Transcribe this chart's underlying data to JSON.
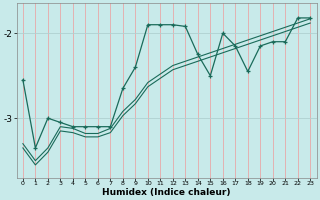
{
  "xlabel": "Humidex (Indice chaleur)",
  "bg_color": "#c8eaea",
  "line_color": "#1a6b5a",
  "grid_color": "#b0d8d8",
  "ytick_labels": [
    "-3",
    "-2"
  ],
  "yticks": [
    -3.0,
    -2.0
  ],
  "ylim": [
    -3.7,
    -1.65
  ],
  "xlim": [
    -0.5,
    23.5
  ],
  "xticks": [
    0,
    1,
    2,
    3,
    4,
    5,
    6,
    7,
    8,
    9,
    10,
    11,
    12,
    13,
    14,
    15,
    16,
    17,
    18,
    19,
    20,
    21,
    22,
    23
  ],
  "series1_x": [
    0,
    1,
    2,
    3,
    4,
    5,
    6,
    7,
    8,
    9,
    10,
    11,
    12,
    13,
    14,
    15,
    16,
    17,
    18,
    19,
    20,
    21,
    22,
    23
  ],
  "series1_y": [
    -2.55,
    -3.35,
    -3.0,
    -3.05,
    -3.1,
    -3.1,
    -3.1,
    -3.1,
    -2.65,
    -2.4,
    -1.9,
    -1.9,
    -1.9,
    -1.92,
    -2.25,
    -2.5,
    -2.0,
    -2.15,
    -2.45,
    -2.15,
    -2.1,
    -2.1,
    -1.82,
    -1.82
  ],
  "series2_x": [
    0,
    1,
    2,
    3,
    4,
    5,
    6,
    7,
    8,
    9,
    10,
    11,
    12,
    13,
    14,
    15,
    16,
    17,
    18,
    19,
    20,
    21,
    22,
    23
  ],
  "series2_y": [
    -3.3,
    -3.5,
    -3.35,
    -3.1,
    -3.12,
    -3.18,
    -3.18,
    -3.12,
    -2.92,
    -2.78,
    -2.58,
    -2.48,
    -2.38,
    -2.33,
    -2.28,
    -2.23,
    -2.18,
    -2.13,
    -2.08,
    -2.03,
    -1.98,
    -1.93,
    -1.88,
    -1.83
  ],
  "series3_x": [
    0,
    1,
    2,
    3,
    4,
    5,
    6,
    7,
    8,
    9,
    10,
    11,
    12,
    13,
    14,
    15,
    16,
    17,
    18,
    19,
    20,
    21,
    22,
    23
  ],
  "series3_y": [
    -3.35,
    -3.55,
    -3.4,
    -3.15,
    -3.17,
    -3.22,
    -3.22,
    -3.17,
    -2.97,
    -2.83,
    -2.63,
    -2.53,
    -2.43,
    -2.38,
    -2.33,
    -2.28,
    -2.23,
    -2.18,
    -2.13,
    -2.08,
    -2.03,
    -1.98,
    -1.93,
    -1.88
  ]
}
